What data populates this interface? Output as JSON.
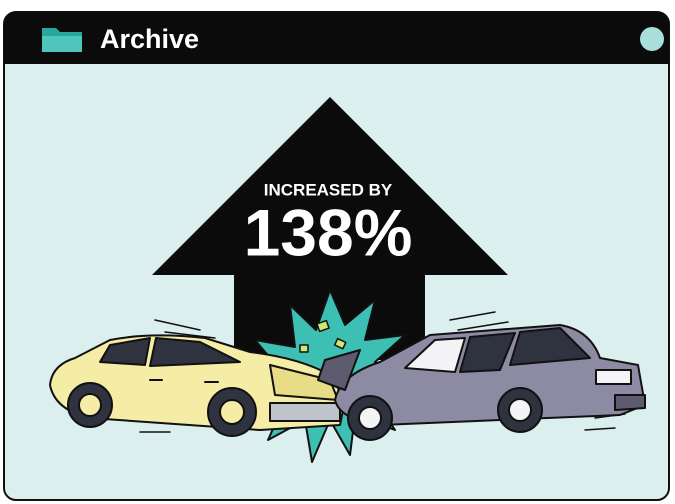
{
  "window": {
    "title": "Archive"
  },
  "headline": {
    "label": "INCREASED BY",
    "value": "138%"
  }
}
